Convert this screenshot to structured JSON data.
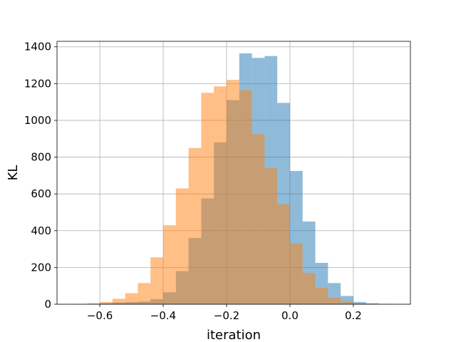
{
  "chart_data": {
    "type": "bar",
    "title": "",
    "xlabel": "iteration",
    "ylabel": "KL",
    "xlim": [
      -0.735,
      0.38
    ],
    "ylim": [
      0,
      1430
    ],
    "grid": true,
    "x_ticks": [
      -0.6,
      -0.4,
      -0.2,
      0.0,
      0.2
    ],
    "x_tick_labels": [
      "−0.6",
      "−0.4",
      "−0.2",
      "0.0",
      "0.2"
    ],
    "y_ticks": [
      0,
      200,
      400,
      600,
      800,
      1000,
      1200,
      1400
    ],
    "y_tick_labels": [
      "0",
      "200",
      "400",
      "600",
      "800",
      "1000",
      "1200",
      "1400"
    ],
    "series": [
      {
        "color": "#1f77b4",
        "alpha": 0.5,
        "bins": [
          [
            -0.64,
            -0.6,
            2
          ],
          [
            -0.6,
            -0.56,
            5
          ],
          [
            -0.56,
            -0.52,
            10
          ],
          [
            -0.52,
            -0.48,
            12
          ],
          [
            -0.48,
            -0.44,
            15
          ],
          [
            -0.44,
            -0.4,
            28
          ],
          [
            -0.4,
            -0.36,
            65
          ],
          [
            -0.36,
            -0.32,
            180
          ],
          [
            -0.32,
            -0.28,
            360
          ],
          [
            -0.28,
            -0.24,
            575
          ],
          [
            -0.24,
            -0.2,
            880
          ],
          [
            -0.2,
            -0.16,
            1110
          ],
          [
            -0.16,
            -0.12,
            1365
          ],
          [
            -0.12,
            -0.08,
            1340
          ],
          [
            -0.08,
            -0.04,
            1350
          ],
          [
            -0.04,
            0.0,
            1095
          ],
          [
            0.0,
            0.04,
            725
          ],
          [
            0.04,
            0.08,
            450
          ],
          [
            0.08,
            0.12,
            225
          ],
          [
            0.12,
            0.16,
            115
          ],
          [
            0.16,
            0.2,
            45
          ],
          [
            0.2,
            0.24,
            12
          ],
          [
            0.24,
            0.28,
            5
          ],
          [
            0.28,
            0.32,
            2
          ]
        ]
      },
      {
        "color": "#ff7f0e",
        "alpha": 0.5,
        "bins": [
          [
            -0.68,
            -0.64,
            2
          ],
          [
            -0.64,
            -0.6,
            5
          ],
          [
            -0.6,
            -0.56,
            12
          ],
          [
            -0.56,
            -0.52,
            30
          ],
          [
            -0.52,
            -0.48,
            60
          ],
          [
            -0.48,
            -0.44,
            115
          ],
          [
            -0.44,
            -0.4,
            255
          ],
          [
            -0.4,
            -0.36,
            430
          ],
          [
            -0.36,
            -0.32,
            630
          ],
          [
            -0.32,
            -0.28,
            850
          ],
          [
            -0.28,
            -0.24,
            1150
          ],
          [
            -0.24,
            -0.2,
            1185
          ],
          [
            -0.2,
            -0.16,
            1220
          ],
          [
            -0.16,
            -0.12,
            1165
          ],
          [
            -0.12,
            -0.08,
            925
          ],
          [
            -0.08,
            -0.04,
            740
          ],
          [
            -0.04,
            0.0,
            545
          ],
          [
            0.0,
            0.04,
            330
          ],
          [
            0.04,
            0.08,
            170
          ],
          [
            0.08,
            0.12,
            90
          ],
          [
            0.12,
            0.16,
            35
          ],
          [
            0.16,
            0.2,
            15
          ],
          [
            0.2,
            0.24,
            4
          ]
        ]
      }
    ]
  }
}
